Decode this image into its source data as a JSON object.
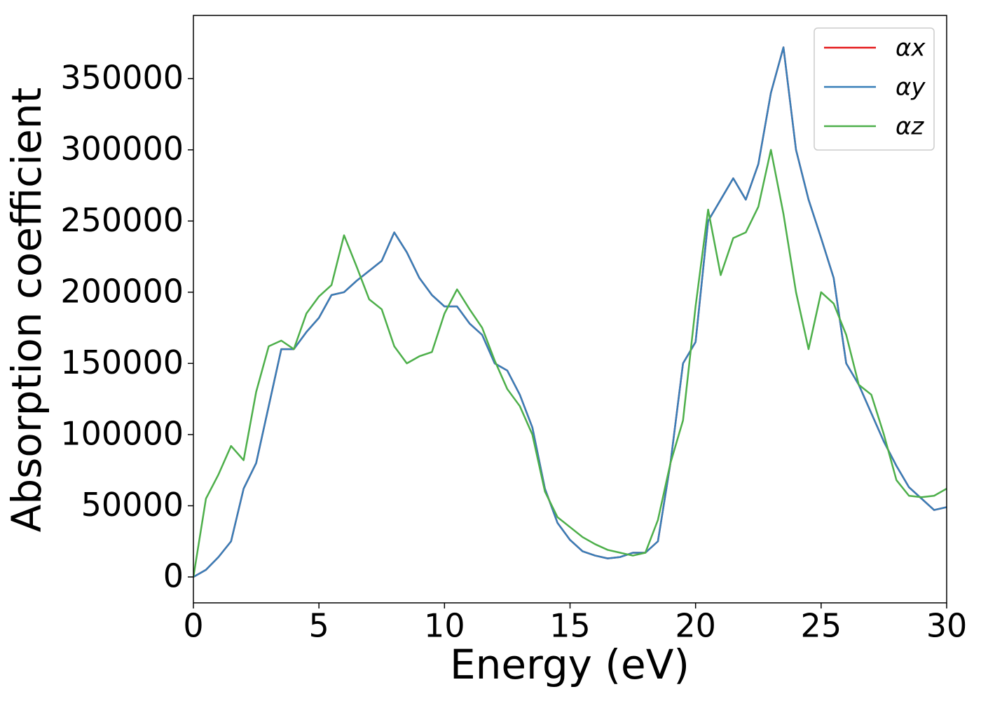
{
  "chart_data": {
    "type": "line",
    "xlabel": "Energy (eV)",
    "ylabel": "Absorption coefficient",
    "x": [
      0,
      0.5,
      1,
      1.5,
      2,
      2.5,
      3,
      3.5,
      4,
      4.5,
      5,
      5.5,
      6,
      6.5,
      7,
      7.5,
      8,
      8.5,
      9,
      9.5,
      10,
      10.5,
      11,
      11.5,
      12,
      12.5,
      13,
      13.5,
      14,
      14.5,
      15,
      15.5,
      16,
      16.5,
      17,
      17.5,
      18,
      18.5,
      19,
      19.5,
      20,
      20.5,
      21,
      21.5,
      22,
      22.5,
      23,
      23.5,
      24,
      24.5,
      25,
      25.5,
      26,
      26.5,
      27,
      27.5,
      28,
      28.5,
      29,
      29.5,
      30
    ],
    "series": [
      {
        "name": "αx",
        "color": "#e41a1c",
        "values": [
          0,
          5000,
          14000,
          25000,
          62000,
          80000,
          120000,
          160000,
          160000,
          172000,
          182000,
          198000,
          200000,
          208000,
          215000,
          222000,
          242000,
          228000,
          210000,
          198000,
          190000,
          190000,
          178000,
          170000,
          150000,
          145000,
          128000,
          105000,
          62000,
          38000,
          26000,
          18000,
          15000,
          13000,
          14000,
          17000,
          17000,
          25000,
          80000,
          150000,
          165000,
          250000,
          265000,
          280000,
          265000,
          290000,
          340000,
          372000,
          300000,
          265000,
          238000,
          210000,
          150000,
          135000,
          115000,
          95000,
          78000,
          63000,
          55000,
          47000,
          49000
        ]
      },
      {
        "name": "αy",
        "color": "#377eb8",
        "values": [
          0,
          5000,
          14000,
          25000,
          62000,
          80000,
          120000,
          160000,
          160000,
          172000,
          182000,
          198000,
          200000,
          208000,
          215000,
          222000,
          242000,
          228000,
          210000,
          198000,
          190000,
          190000,
          178000,
          170000,
          150000,
          145000,
          128000,
          105000,
          62000,
          38000,
          26000,
          18000,
          15000,
          13000,
          14000,
          17000,
          17000,
          25000,
          80000,
          150000,
          165000,
          250000,
          265000,
          280000,
          265000,
          290000,
          340000,
          372000,
          300000,
          265000,
          238000,
          210000,
          150000,
          135000,
          115000,
          95000,
          78000,
          63000,
          55000,
          47000,
          49000
        ]
      },
      {
        "name": "αz",
        "color": "#4daf4a",
        "values": [
          0,
          55000,
          72000,
          92000,
          82000,
          130000,
          162000,
          166000,
          160000,
          185000,
          197000,
          205000,
          240000,
          218000,
          195000,
          188000,
          162000,
          150000,
          155000,
          158000,
          185000,
          202000,
          188000,
          175000,
          152000,
          132000,
          120000,
          100000,
          60000,
          42000,
          35000,
          28000,
          23000,
          19000,
          17000,
          15000,
          17000,
          40000,
          80000,
          110000,
          190000,
          258000,
          212000,
          238000,
          242000,
          260000,
          300000,
          255000,
          200000,
          160000,
          200000,
          192000,
          170000,
          135000,
          128000,
          100000,
          68000,
          57000,
          56000,
          57000,
          62000
        ]
      }
    ],
    "xlim": [
      0,
      30
    ],
    "xticks": [
      0,
      5,
      10,
      15,
      20,
      25,
      30
    ],
    "ylim": [
      -18200,
      394400
    ],
    "yticks": [
      0,
      50000,
      100000,
      150000,
      200000,
      250000,
      300000,
      350000
    ],
    "legend": "upper right",
    "grid": false
  }
}
